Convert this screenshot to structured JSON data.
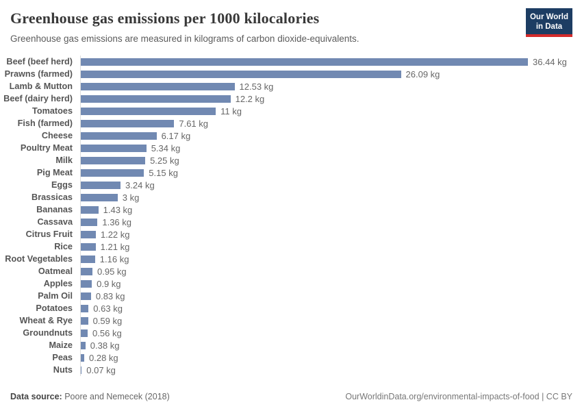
{
  "header": {
    "title": "Greenhouse gas emissions per 1000 kilocalories",
    "subtitle": "Greenhouse gas emissions are measured in kilograms of carbon dioxide-equivalents.",
    "logo": {
      "line1": "Our World",
      "line2": "in Data"
    }
  },
  "chart_data": {
    "type": "bar",
    "orientation": "horizontal",
    "title": "Greenhouse gas emissions per 1000 kilocalories",
    "xlabel": "",
    "ylabel": "",
    "unit": "kg",
    "xlim": [
      0,
      36.44
    ],
    "grid": false,
    "legend": "none",
    "bar_color": "#7189b2",
    "categories": [
      "Beef (beef herd)",
      "Prawns (farmed)",
      "Lamb & Mutton",
      "Beef (dairy herd)",
      "Tomatoes",
      "Fish (farmed)",
      "Cheese",
      "Poultry Meat",
      "Milk",
      "Pig Meat",
      "Eggs",
      "Brassicas",
      "Bananas",
      "Cassava",
      "Citrus Fruit",
      "Rice",
      "Root Vegetables",
      "Oatmeal",
      "Apples",
      "Palm Oil",
      "Potatoes",
      "Wheat & Rye",
      "Groundnuts",
      "Maize",
      "Peas",
      "Nuts"
    ],
    "values": [
      36.44,
      26.09,
      12.53,
      12.2,
      11,
      7.61,
      6.17,
      5.34,
      5.25,
      5.15,
      3.24,
      3,
      1.43,
      1.36,
      1.22,
      1.21,
      1.16,
      0.95,
      0.9,
      0.83,
      0.63,
      0.59,
      0.56,
      0.38,
      0.28,
      0.07
    ],
    "value_labels": [
      "36.44 kg",
      "26.09 kg",
      "12.53 kg",
      "12.2 kg",
      "11 kg",
      "7.61 kg",
      "6.17 kg",
      "5.34 kg",
      "5.25 kg",
      "5.15 kg",
      "3.24 kg",
      "3 kg",
      "1.43 kg",
      "1.36 kg",
      "1.22 kg",
      "1.21 kg",
      "1.16 kg",
      "0.95 kg",
      "0.9 kg",
      "0.83 kg",
      "0.63 kg",
      "0.59 kg",
      "0.56 kg",
      "0.38 kg",
      "0.28 kg",
      "0.07 kg"
    ]
  },
  "footer": {
    "datasource_label": "Data source:",
    "datasource_value": "Poore and Nemecek (2018)",
    "url": "OurWorldinData.org/environmental-impacts-of-food",
    "separator": " | ",
    "license": "CC BY"
  },
  "colors": {
    "bar": "#7189b2",
    "logo_background": "#1d3d63",
    "logo_stripe": "#d42b2b",
    "axis_line": "#dedede",
    "title_text": "#383838",
    "subtitle_text": "#5b5b5b",
    "category_text": "#555555",
    "value_text": "#666666"
  }
}
